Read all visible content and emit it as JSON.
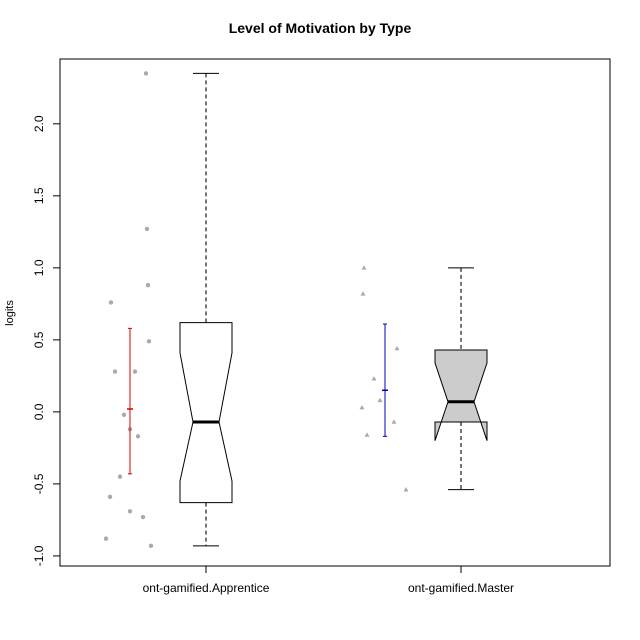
{
  "chart_data": {
    "type": "box",
    "title": "Level of Motivation by Type",
    "xlabel": "",
    "ylabel": "logits",
    "ylim": [
      -1.07,
      2.45
    ],
    "y_ticks": [
      "-1.0",
      "-0.5",
      "0.0",
      "0.5",
      "1.0",
      "1.5",
      "2.0"
    ],
    "categories": [
      "ont-gamified.Apprentice",
      "ont-gamified.Master"
    ],
    "boxes": [
      {
        "category": "ont-gamified.Apprentice",
        "whisker_low": -0.93,
        "q1": -0.63,
        "median": -0.07,
        "q3": 0.62,
        "whisker_high": 2.35,
        "notch_low": -0.48,
        "notch_high": 0.41,
        "fill": "#ffffff",
        "points": [
          2.35,
          1.27,
          0.88,
          0.76,
          0.49,
          0.28,
          0.28,
          -0.02,
          -0.12,
          -0.17,
          -0.45,
          -0.59,
          -0.69,
          -0.73,
          -0.88,
          -0.93
        ],
        "point_color": "#aaaaaa",
        "mean": 0.02,
        "interval_low": -0.43,
        "interval_high": 0.58,
        "interval_color": "#dd0000"
      },
      {
        "category": "ont-gamified.Master",
        "whisker_low": -0.54,
        "q1": -0.07,
        "median": 0.07,
        "q3": 0.43,
        "whisker_high": 1.0,
        "notch_low": -0.2,
        "notch_high": 0.34,
        "fill": "#cccccc",
        "points": [
          1.0,
          0.82,
          0.44,
          0.23,
          0.08,
          0.03,
          -0.07,
          -0.16,
          -0.54
        ],
        "point_color": "#aaaaaa",
        "mean": 0.15,
        "interval_low": -0.17,
        "interval_high": 0.61,
        "interval_color": "#0000bb"
      }
    ],
    "grid": false,
    "legend": "none"
  }
}
